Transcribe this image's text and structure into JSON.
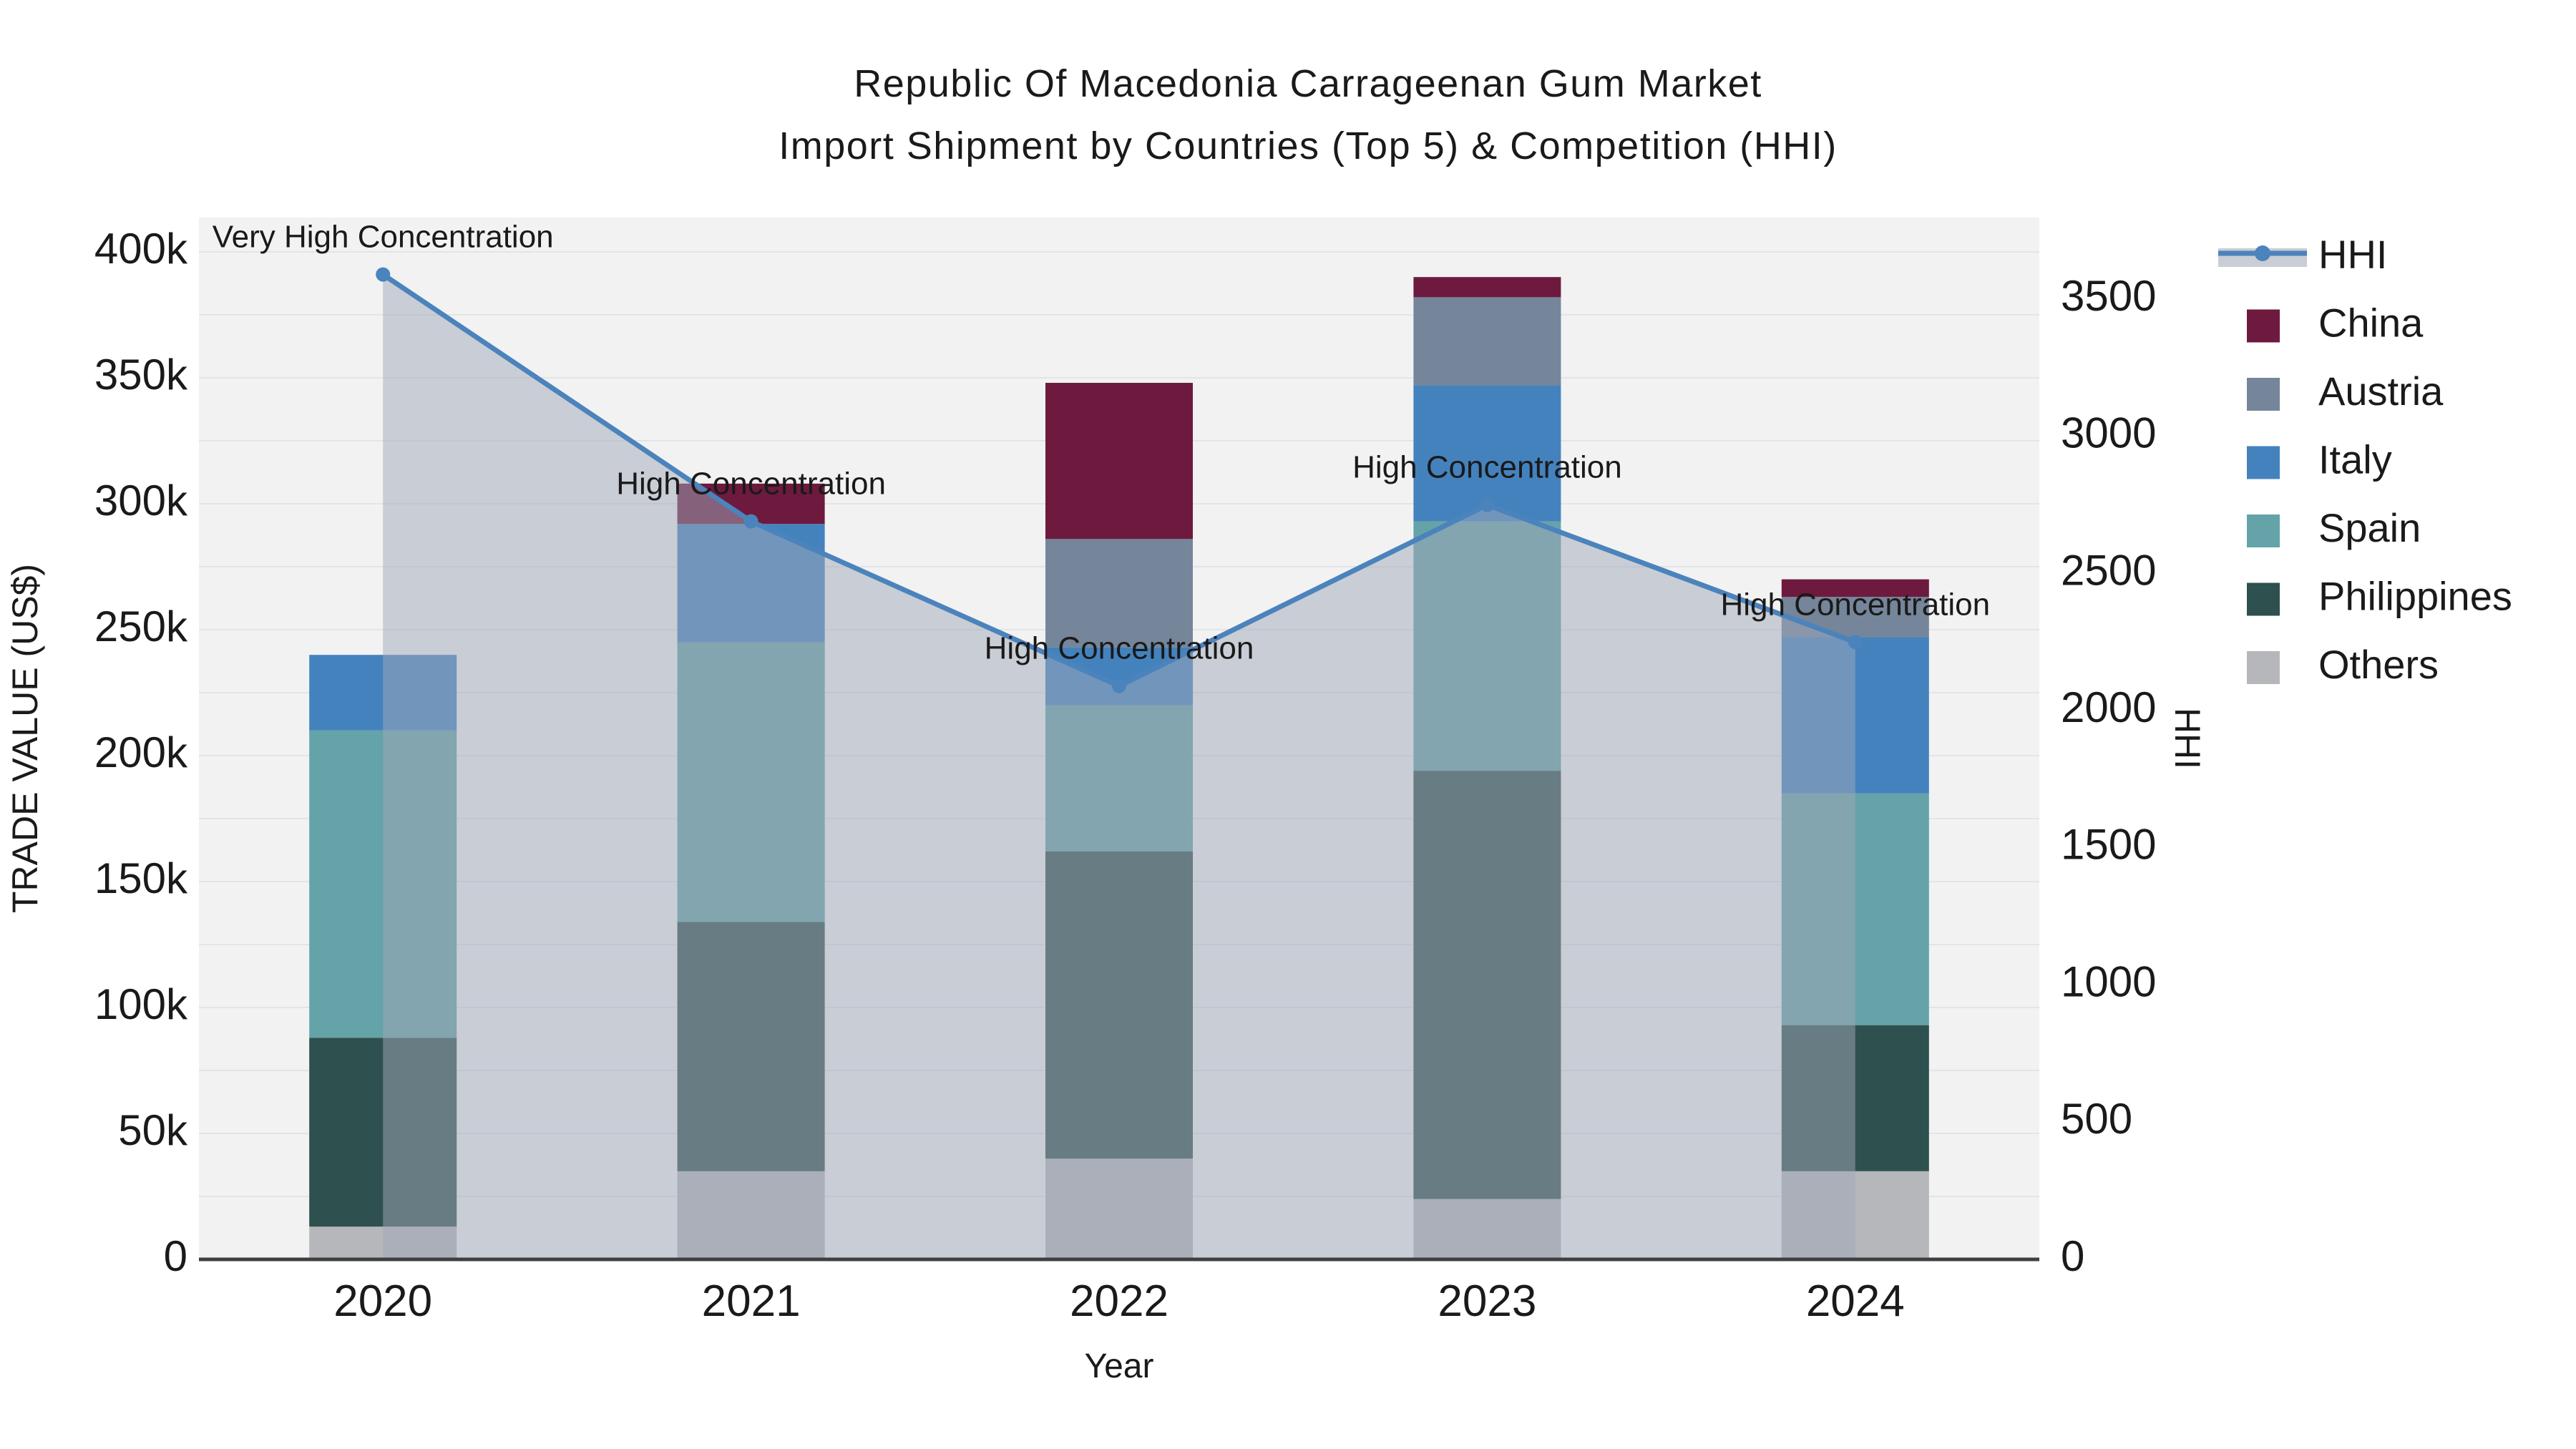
{
  "title": {
    "line1": "Republic Of Macedonia Carrageenan Gum Market",
    "line2": "Import Shipment by Countries (Top 5) & Competition (HHI)"
  },
  "chart_data": {
    "type": "bar+line",
    "subtype": "stacked bars (left axis) with HHI line+area (right axis)",
    "categories": [
      "2020",
      "2021",
      "2022",
      "2023",
      "2024"
    ],
    "xlabel": "Year",
    "ylabel_left": "TRADE VALUE (US$)",
    "ylabel_right": "HHI",
    "yaxis_left": {
      "ticks": [
        "0",
        "50k",
        "100k",
        "150k",
        "200k",
        "250k",
        "300k",
        "350k",
        "400k"
      ],
      "values": [
        0,
        50000,
        100000,
        150000,
        200000,
        250000,
        300000,
        350000,
        400000
      ],
      "max_visible": 413000,
      "grid_step": 25000,
      "grid_on": true
    },
    "yaxis_right": {
      "ticks": [
        "0",
        "500",
        "1000",
        "1500",
        "2000",
        "2500",
        "3000",
        "3500"
      ],
      "values": [
        0,
        500,
        1000,
        1500,
        2000,
        2500,
        3000,
        3500
      ],
      "max_visible": 3800,
      "grid_on": false
    },
    "series": [
      {
        "name": "Others",
        "values": [
          13000,
          35000,
          40000,
          24000,
          35000
        ]
      },
      {
        "name": "Philippines",
        "values": [
          75000,
          99000,
          122000,
          170000,
          58000
        ]
      },
      {
        "name": "Spain",
        "values": [
          122000,
          111000,
          58000,
          99000,
          92000
        ]
      },
      {
        "name": "Italy",
        "values": [
          30000,
          47000,
          23000,
          54000,
          62000
        ]
      },
      {
        "name": "Austria",
        "values": [
          0,
          0,
          43000,
          35000,
          16000
        ]
      },
      {
        "name": "China",
        "values": [
          0,
          16000,
          62000,
          8000,
          7000
        ]
      }
    ],
    "totals": [
      240000,
      308000,
      348000,
      390000,
      270000
    ],
    "hhi_series": {
      "name": "HHI",
      "values": [
        3590,
        2690,
        2090,
        2750,
        2250
      ]
    },
    "annotations": [
      {
        "category": "2020",
        "text": "Very High Concentration"
      },
      {
        "category": "2021",
        "text": "High Concentration"
      },
      {
        "category": "2022",
        "text": "High Concentration"
      },
      {
        "category": "2023",
        "text": "High Concentration"
      },
      {
        "category": "2024",
        "text": "High Concentration"
      }
    ],
    "legend": [
      "HHI",
      "China",
      "Austria",
      "Italy",
      "Spain",
      "Philippines",
      "Others"
    ],
    "legend_position": "right",
    "colors": {
      "HHI": "#4B83BC",
      "China": "#6D1A3E",
      "Austria": "#75859A",
      "Italy": "#4482BE",
      "Spain": "#64A3A8",
      "Philippines": "#2E504E",
      "Others": "#B5B7BA",
      "area_fill": "rgba(160,168,184,0.5)",
      "plot_bg": "#F2F2F3",
      "grid": "#E3E4E6",
      "axis_line": "#3F3F3F",
      "text": "#1A1A1A"
    }
  }
}
